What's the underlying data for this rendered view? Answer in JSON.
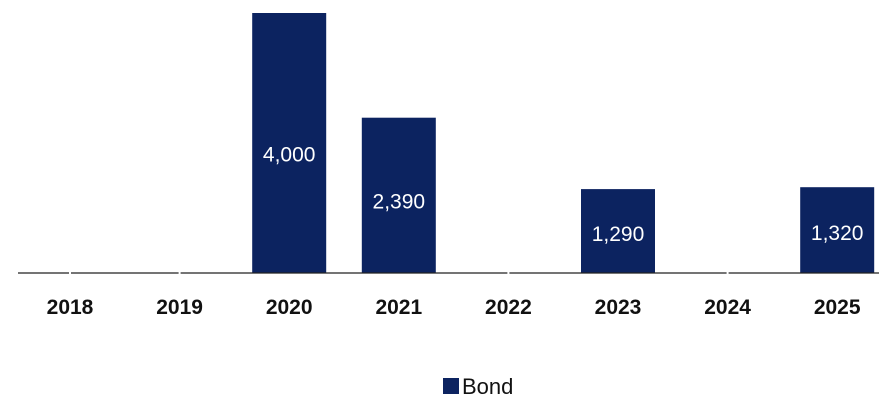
{
  "chart_data": {
    "type": "bar",
    "categories": [
      "2018",
      "2019",
      "2020",
      "2021",
      "2022",
      "2023",
      "2024",
      "2025"
    ],
    "series": [
      {
        "name": "Bond",
        "color": "#0c2360",
        "values": [
          0,
          0,
          4000,
          2390,
          0,
          1290,
          0,
          1320
        ],
        "labels": [
          "",
          "",
          "4,000",
          "2,390",
          "",
          "1,290",
          "",
          "1,320"
        ]
      }
    ],
    "ylim": [
      0,
      4000
    ],
    "grid": false,
    "legend": "bottom"
  }
}
